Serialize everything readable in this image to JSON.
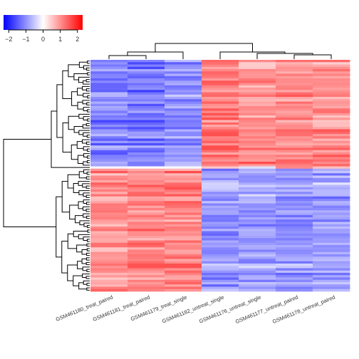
{
  "chart_data": {
    "type": "heatmap",
    "title": "",
    "columns": [
      "GSM461180_treat_paired",
      "GSM461181_treat_paired",
      "GSM461179_treat_single",
      "GSM461182_untreat_single",
      "GSM461176_untreat_single",
      "GSM461177_untreat_paired",
      "GSM461178_untreat_paired"
    ],
    "color_key": {
      "ticks": [
        "-2",
        "-1",
        "0",
        "1",
        "2"
      ],
      "range": [
        -2.3,
        2.3
      ],
      "low_color": "#0000ff",
      "mid_color": "#ffffff",
      "high_color": "#ff0000"
    },
    "row_count": 100,
    "row_clusters": [
      {
        "rows": 46,
        "column_means": [
          -1.1,
          -1.2,
          -1.0,
          1.2,
          1.0,
          1.0,
          1.0
        ]
      },
      {
        "rows": 1,
        "column_means": [
          0.0,
          -0.2,
          -0.3,
          0.3,
          -0.2,
          0.9,
          0.5
        ]
      },
      {
        "rows": 53,
        "column_means": [
          1.0,
          1.1,
          1.1,
          -0.9,
          -0.8,
          -0.9,
          -0.8
        ]
      }
    ],
    "column_dendrogram": "((GSM461180_treat_paired,GSM461181_treat_paired),GSM461179_treat_single),(GSM461182_untreat_single,(GSM461176_untreat_single,(GSM461177_untreat_paired,GSM461178_untreat_paired)))",
    "row_dendrogram": "two main clusters: upper (rows 1-47) and lower (rows 48-100)",
    "grid": false,
    "legend_placement": "top-left"
  }
}
